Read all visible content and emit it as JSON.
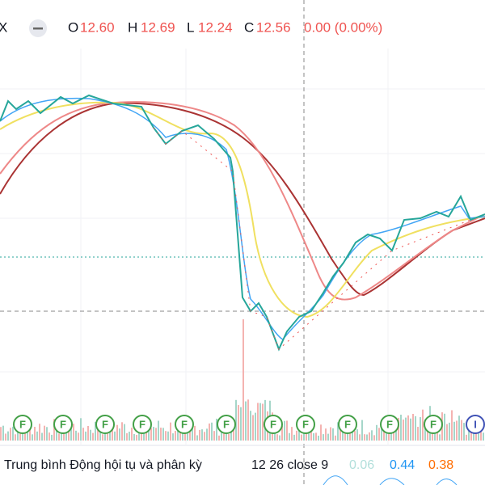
{
  "header": {
    "symbol": "X",
    "open_label": "O",
    "open": "12.60",
    "high_label": "H",
    "high": "12.69",
    "low_label": "L",
    "low": "12.24",
    "close_label": "C",
    "close": "12.56",
    "change": "0.00 (0.00%)"
  },
  "markers": [
    "F",
    "F",
    "F",
    "F",
    "F",
    "F",
    "F",
    "F",
    "F",
    "F",
    "F",
    "I"
  ],
  "indicator": {
    "name": "Trung bình Động hội tụ và phân kỳ",
    "params": "12 26 close 9",
    "histogram": "0.06",
    "macd": "0.44",
    "signal": "0.38"
  }
}
